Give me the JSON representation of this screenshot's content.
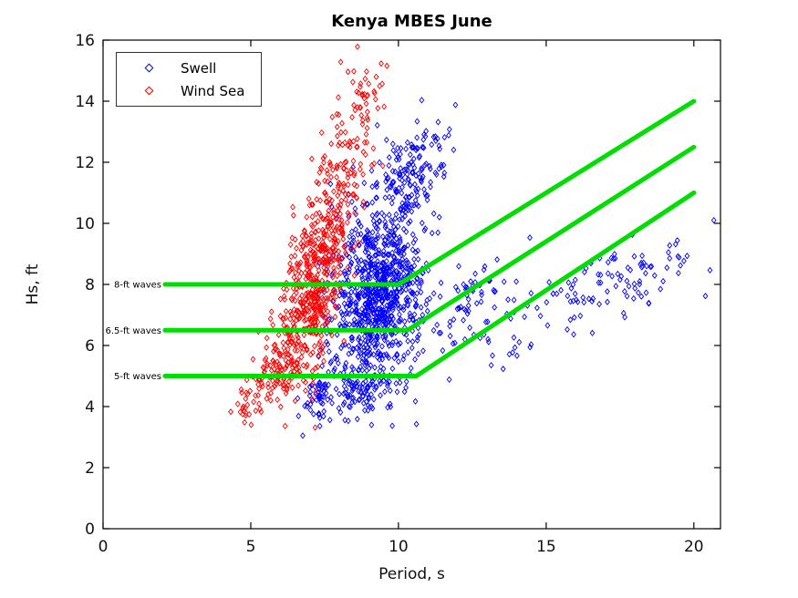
{
  "chart_data": {
    "type": "scatter",
    "title": "Kenya MBES June",
    "xlabel": "Period, s",
    "ylabel": "Hs, ft",
    "xlim": [
      0,
      20.9
    ],
    "ylim": [
      0,
      16
    ],
    "xticks": [
      0,
      5,
      10,
      15,
      20
    ],
    "yticks": [
      0,
      2,
      4,
      6,
      8,
      10,
      12,
      14,
      16
    ],
    "grid": false,
    "legend": {
      "position": "top-left",
      "entries": [
        {
          "label": "Swell",
          "color": "#0000ff",
          "marker": "diamond"
        },
        {
          "label": "Wind Sea",
          "color": "#ff0000",
          "marker": "diamond"
        }
      ]
    },
    "series": [
      {
        "name": "Swell",
        "color": "#0000ff",
        "marker": "diamond",
        "clusters": [
          {
            "cx": 9.3,
            "cy": 7.7,
            "sx": 0.75,
            "sy": 1.5,
            "rho": 0.2,
            "n": 880
          },
          {
            "cx": 10.4,
            "cy": 11.6,
            "sx": 0.6,
            "sy": 0.9,
            "rho": 0.3,
            "n": 150
          },
          {
            "cx": 8.6,
            "cy": 4.5,
            "sx": 0.7,
            "sy": 0.45,
            "rho": 0.0,
            "n": 90
          },
          {
            "cx": 7.3,
            "cy": 4.2,
            "sx": 0.2,
            "sy": 0.5,
            "rho": 0.0,
            "n": 45
          },
          {
            "cx": 12.3,
            "cy": 7.6,
            "sx": 0.8,
            "sy": 0.9,
            "rho": 0.3,
            "n": 70
          },
          {
            "cx": 17.0,
            "cy": 8.0,
            "sx": 1.9,
            "sy": 0.8,
            "rho": 0.55,
            "n": 115
          },
          {
            "cx": 13.9,
            "cy": 5.8,
            "sx": 0.5,
            "sy": 0.35,
            "rho": 0.0,
            "n": 12
          }
        ]
      },
      {
        "name": "Wind Sea",
        "color": "#ff0000",
        "marker": "diamond",
        "clusters": [
          {
            "cx": 7.1,
            "cy": 7.8,
            "sx": 0.55,
            "sy": 1.5,
            "rho": 0.5,
            "n": 520
          },
          {
            "cx": 8.1,
            "cy": 11.5,
            "sx": 0.5,
            "sy": 1.3,
            "rho": 0.4,
            "n": 130
          },
          {
            "cx": 8.9,
            "cy": 14.3,
            "sx": 0.3,
            "sy": 0.7,
            "rho": 0.2,
            "n": 30
          },
          {
            "cx": 5.9,
            "cy": 5.2,
            "sx": 0.5,
            "sy": 0.65,
            "rho": 0.5,
            "n": 110
          },
          {
            "cx": 4.8,
            "cy": 4.0,
            "sx": 0.3,
            "sy": 0.35,
            "rho": 0.3,
            "n": 18
          }
        ]
      }
    ],
    "threshold_lines": [
      {
        "id": "8ft",
        "label": "8-ft waves",
        "color": "#00dd00",
        "points": [
          [
            2.1,
            8.0
          ],
          [
            10.0,
            8.0
          ],
          [
            20.0,
            14.0
          ]
        ]
      },
      {
        "id": "6p5ft",
        "label": "6.5-ft waves",
        "color": "#00dd00",
        "points": [
          [
            2.1,
            6.5
          ],
          [
            10.3,
            6.5
          ],
          [
            20.0,
            12.5
          ]
        ]
      },
      {
        "id": "5ft",
        "label": "5-ft waves",
        "color": "#00dd00",
        "points": [
          [
            2.1,
            5.0
          ],
          [
            10.6,
            5.0
          ],
          [
            20.0,
            11.0
          ]
        ]
      }
    ]
  }
}
